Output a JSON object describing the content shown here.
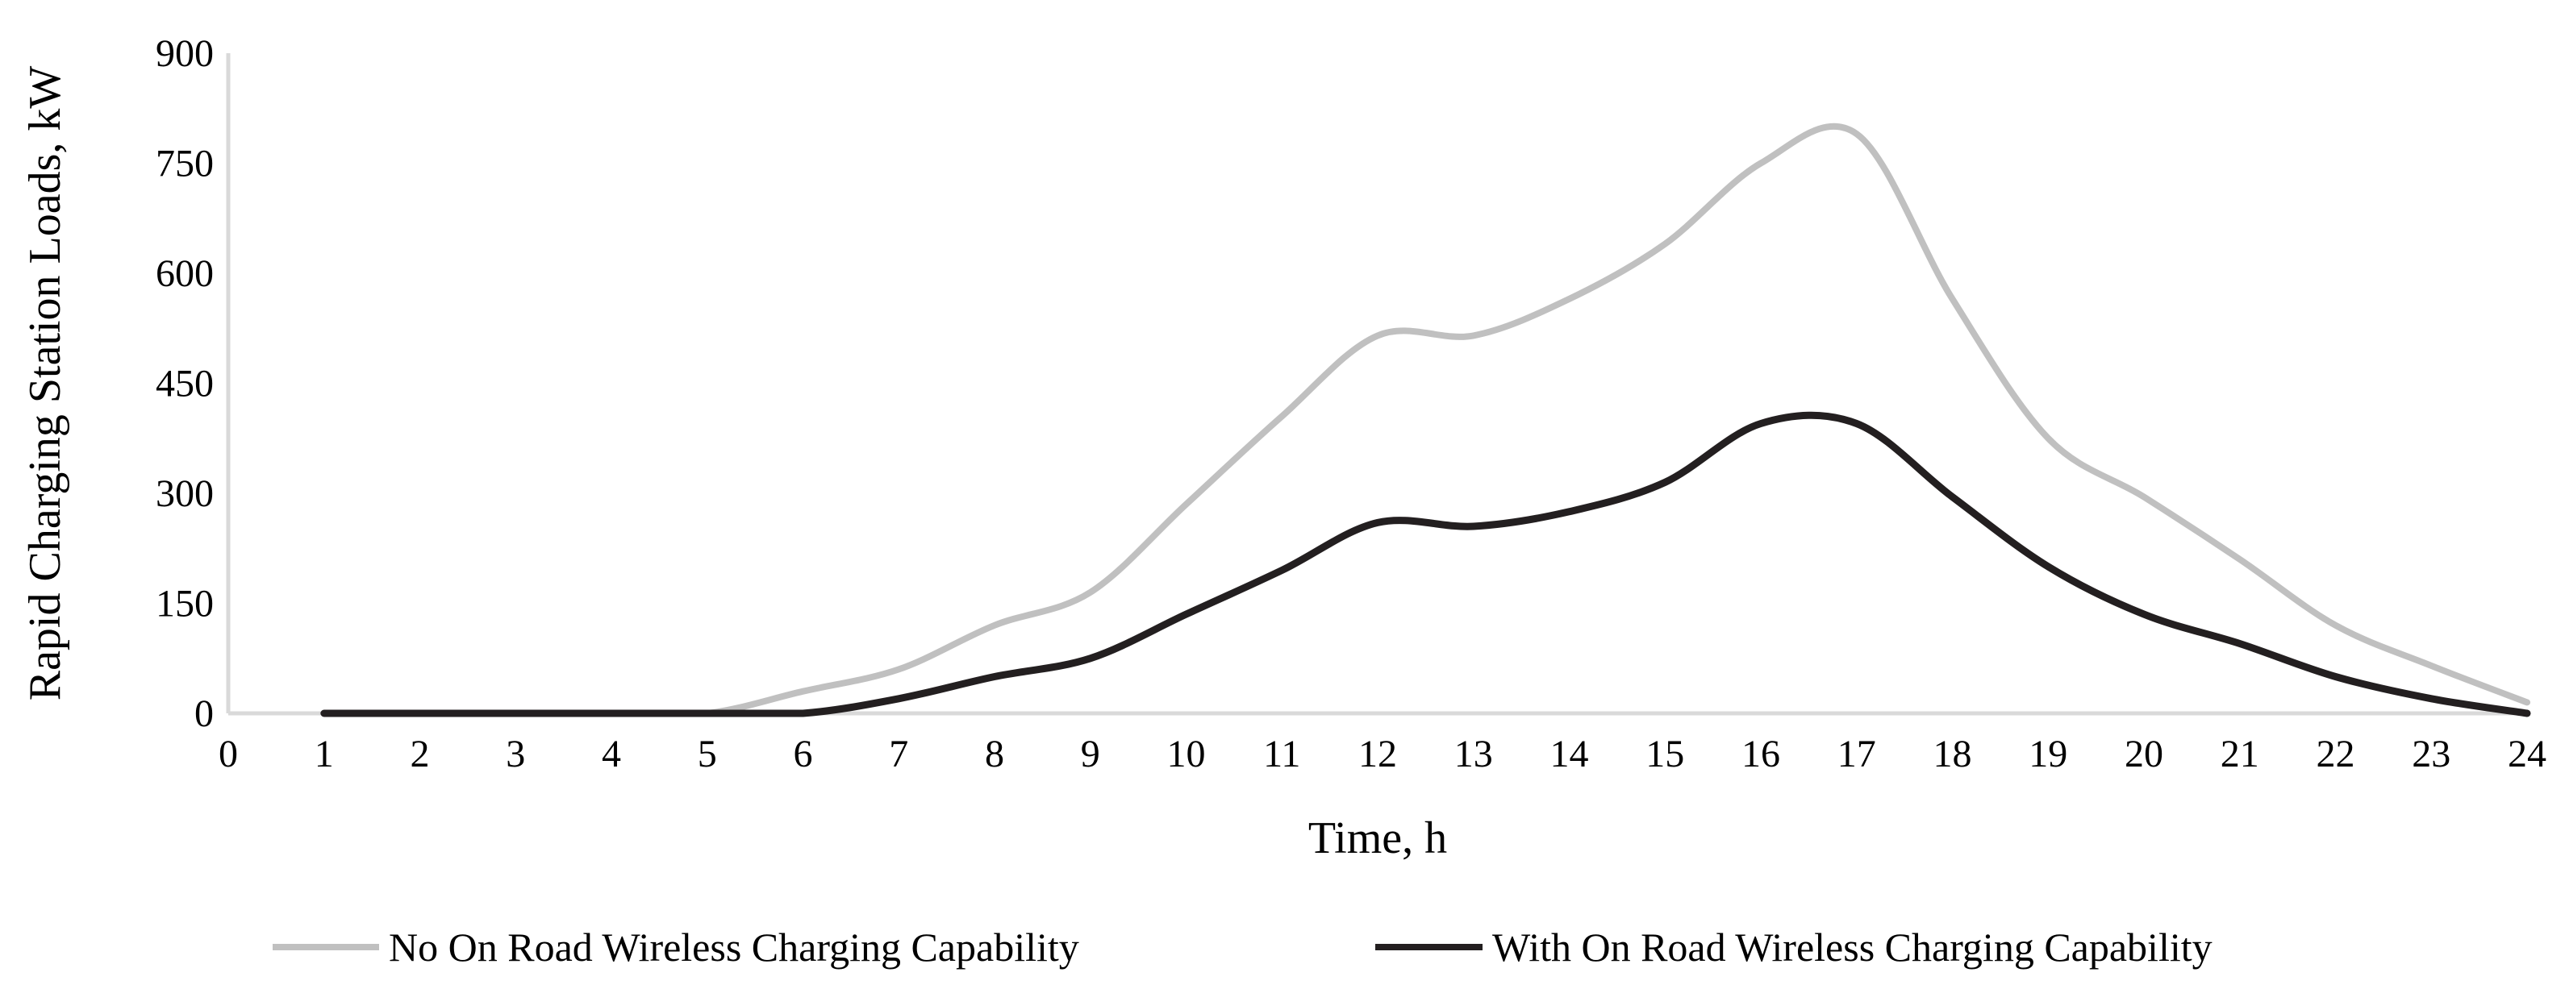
{
  "chart_data": {
    "type": "line",
    "title": "",
    "xlabel": "Time, h",
    "ylabel": "Rapid Charging Station Loads, kW",
    "xlim": [
      0,
      24
    ],
    "ylim": [
      0,
      900
    ],
    "x_ticks": [
      0,
      1,
      2,
      3,
      4,
      5,
      6,
      7,
      8,
      9,
      10,
      11,
      12,
      13,
      14,
      15,
      16,
      17,
      18,
      19,
      20,
      21,
      22,
      23,
      24
    ],
    "y_ticks": [
      0,
      150,
      300,
      450,
      600,
      750,
      900
    ],
    "grid": false,
    "legend_position": "bottom",
    "x": [
      1,
      2,
      3,
      4,
      5,
      6,
      7,
      8,
      9,
      10,
      11,
      12,
      13,
      14,
      15,
      16,
      17,
      18,
      19,
      20,
      21,
      22,
      23,
      24
    ],
    "series": [
      {
        "name": "No On Road Wireless Charging Capability",
        "color": "#c0c0c0",
        "values": [
          0,
          0,
          0,
          0,
          0,
          30,
          60,
          120,
          165,
          285,
          405,
          515,
          515,
          565,
          640,
          750,
          790,
          565,
          375,
          295,
          210,
          120,
          65,
          15
        ]
      },
      {
        "name": "With On Road Wireless Charging Capability",
        "color": "#231f20",
        "values": [
          0,
          0,
          0,
          0,
          0,
          0,
          20,
          50,
          75,
          135,
          195,
          260,
          255,
          275,
          315,
          395,
          395,
          295,
          200,
          135,
          95,
          50,
          20,
          0
        ]
      }
    ]
  }
}
